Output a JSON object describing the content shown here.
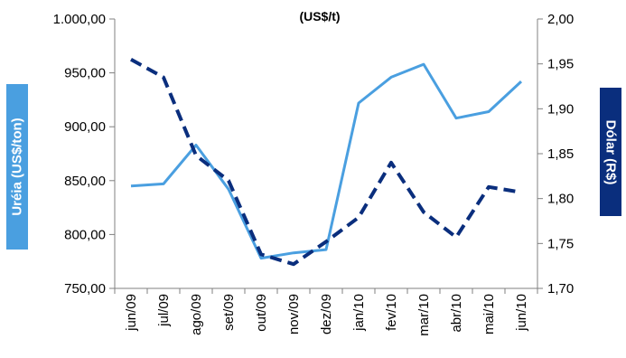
{
  "chart_data": {
    "type": "line",
    "title": "(US$/t)",
    "categories": [
      "jun/09",
      "jul/09",
      "ago/09",
      "set/09",
      "out/09",
      "nov/09",
      "dez/09",
      "jan/10",
      "fev/10",
      "mar/10",
      "abr/10",
      "mai/10",
      "jun/10"
    ],
    "left_axis": {
      "label": "Uréia (US$/ton)",
      "ylim": [
        750,
        1000
      ],
      "ticks": [
        "750,00",
        "800,00",
        "850,00",
        "900,00",
        "950,00",
        "1.000,00"
      ],
      "tick_values": [
        750,
        800,
        850,
        900,
        950,
        1000
      ]
    },
    "right_axis": {
      "label": "Dólar (R$)",
      "ylim": [
        1.7,
        2.0
      ],
      "ticks": [
        "1,70",
        "1,75",
        "1,80",
        "1,85",
        "1,90",
        "1,95",
        "2,00"
      ],
      "tick_values": [
        1.7,
        1.75,
        1.8,
        1.85,
        1.9,
        1.95,
        2.0
      ]
    },
    "series": [
      {
        "name": "Uréia (US$/ton)",
        "axis": "left",
        "style": "solid",
        "color": "#4A9FE0",
        "values": [
          845,
          847,
          883,
          842,
          778,
          783,
          786,
          922,
          946,
          958,
          908,
          914,
          942
        ]
      },
      {
        "name": "Dólar (R$)",
        "axis": "right",
        "style": "dashed",
        "color": "#0A2E7D",
        "values": [
          1.955,
          1.935,
          1.848,
          1.82,
          1.738,
          1.727,
          1.752,
          1.779,
          1.84,
          1.785,
          1.757,
          1.813,
          1.807
        ]
      }
    ],
    "grid": false,
    "legend": "none"
  },
  "colors": {
    "left_label_bg": "#4A9FE0",
    "right_label_bg": "#0A2E7D"
  }
}
